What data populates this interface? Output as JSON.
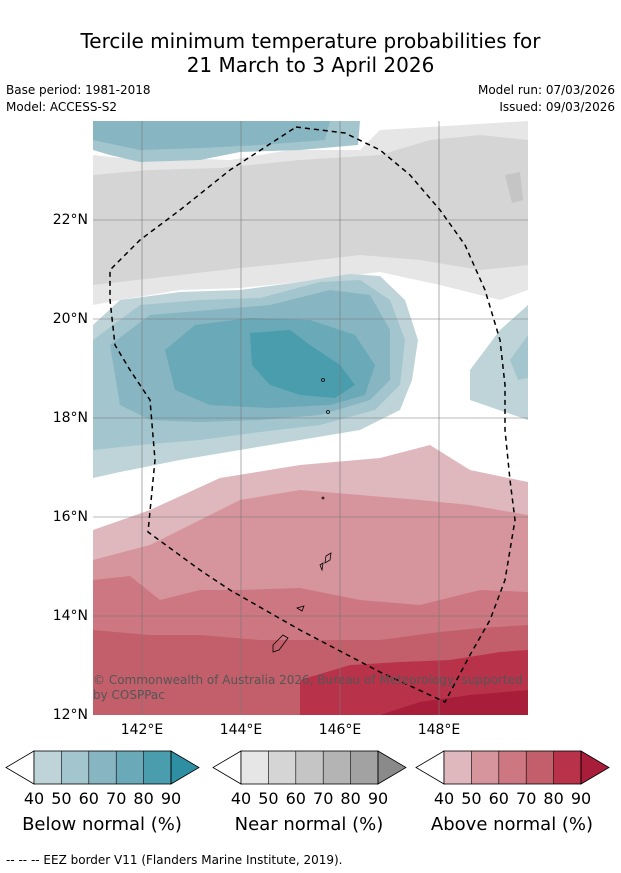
{
  "header": {
    "title_line1": "Tercile minimum temperature probabilities for",
    "title_line2": "21 March to 3 April 2026",
    "base_period": "Base period: 1981-2018",
    "model": "Model: ACCESS-S2",
    "model_run": "Model run: 07/03/2026",
    "issued": "Issued: 09/03/2026"
  },
  "map": {
    "lat_labels": [
      "22°N",
      "20°N",
      "18°N",
      "16°N",
      "14°N",
      "12°N"
    ],
    "lon_labels": [
      "142°E",
      "144°E",
      "146°E",
      "148°E"
    ],
    "copyright_line1": "© Commonwealth of Australia 2026, Bureau of Meteorology, supported",
    "copyright_line2": "by COSPPac"
  },
  "legend": {
    "ticks": [
      "40",
      "50",
      "60",
      "70",
      "80",
      "90"
    ],
    "below_label": "Below normal (%)",
    "near_label": "Near normal (%)",
    "above_label": "Above normal (%)",
    "below_colors": [
      "#bfd4d9",
      "#a3c5cd",
      "#87b5c2",
      "#6aa9b7",
      "#4a9dad",
      "#2f8fa2"
    ],
    "near_colors": [
      "#e6e6e6",
      "#d5d5d5",
      "#c5c5c5",
      "#b4b4b4",
      "#a2a2a2",
      "#8a8a8a"
    ],
    "above_colors": [
      "#dfb8be",
      "#d6959d",
      "#cc7781",
      "#c35f6a",
      "#b8334a",
      "#a81d3a"
    ]
  },
  "footnote": "--  --  -- EEZ border V11 (Flanders Marine Institute, 2019)."
}
